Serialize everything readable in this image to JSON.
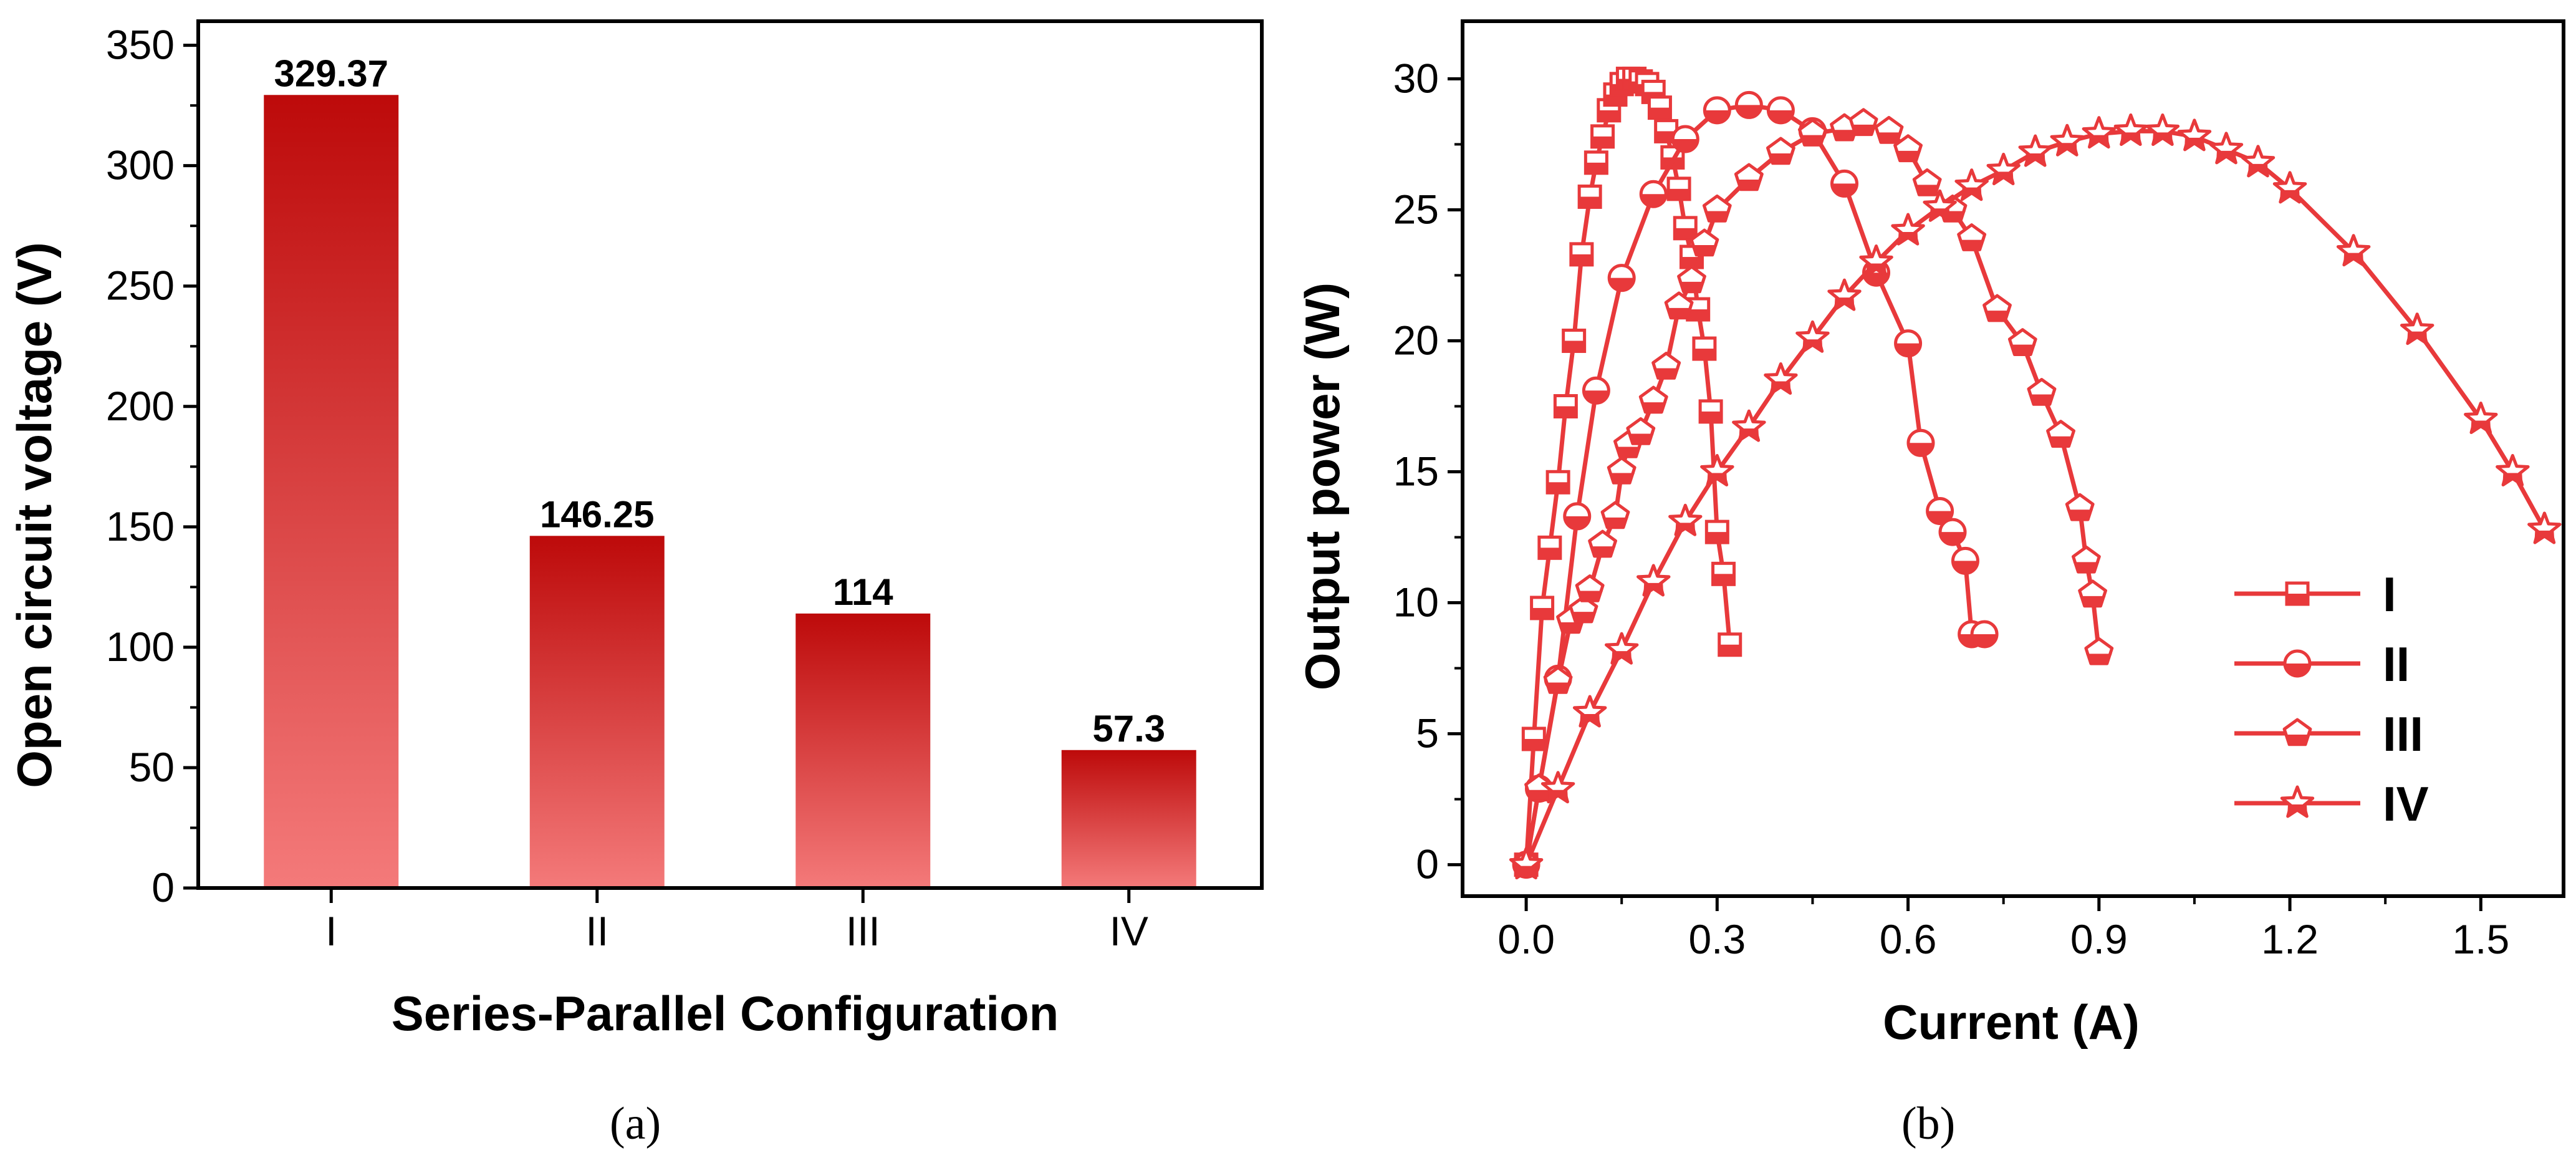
{
  "chart_data": [
    {
      "type": "bar",
      "panel": "(a)",
      "xlabel": "Series-Parallel Configuration",
      "ylabel": "Open circuit voltage (V)",
      "categories": [
        "I",
        "II",
        "III",
        "IV"
      ],
      "values": [
        329.37,
        146.25,
        114,
        57.3
      ],
      "value_labels": [
        "329.37",
        "146.25",
        "114",
        "57.3"
      ],
      "ylim": [
        0,
        360
      ],
      "yticks": [
        0,
        50,
        100,
        150,
        200,
        250,
        300,
        350
      ],
      "grid": false,
      "colors": {
        "bar_top": "#bd0a0a",
        "bar_bottom": "#f47a7a"
      }
    },
    {
      "type": "line",
      "panel": "(b)",
      "xlabel": "Current (A)",
      "ylabel": "Output power (W)",
      "xlim": [
        -0.1,
        1.63
      ],
      "ylim": [
        -1.2,
        32.2
      ],
      "xticks": [
        0.0,
        0.3,
        0.6,
        0.9,
        1.2,
        1.5
      ],
      "xtick_labels": [
        "0.0",
        "0.3",
        "0.6",
        "0.9",
        "1.2",
        "1.5"
      ],
      "yticks": [
        0,
        5,
        10,
        15,
        20,
        25,
        30
      ],
      "legend_position": "lower-right",
      "grid": false,
      "line_color": "#e8393b",
      "series": [
        {
          "name": "I",
          "marker": "square",
          "x": [
            0.0,
            0.012,
            0.025,
            0.037,
            0.05,
            0.062,
            0.075,
            0.087,
            0.1,
            0.11,
            0.12,
            0.13,
            0.14,
            0.15,
            0.16,
            0.17,
            0.18,
            0.19,
            0.2,
            0.21,
            0.22,
            0.23,
            0.24,
            0.25,
            0.26,
            0.27,
            0.28,
            0.29,
            0.3,
            0.31,
            0.32
          ],
          "y": [
            0,
            4.8,
            9.8,
            12.1,
            14.6,
            17.5,
            20.0,
            23.3,
            25.5,
            26.8,
            27.8,
            28.8,
            29.4,
            29.8,
            30.0,
            30.0,
            29.9,
            29.8,
            29.5,
            28.9,
            28.0,
            27.0,
            25.8,
            24.3,
            23.2,
            21.2,
            19.7,
            17.3,
            12.7,
            11.1,
            8.4
          ]
        },
        {
          "name": "II",
          "marker": "circle",
          "x": [
            0.0,
            0.02,
            0.05,
            0.08,
            0.11,
            0.15,
            0.2,
            0.25,
            0.3,
            0.35,
            0.4,
            0.45,
            0.5,
            0.55,
            0.6,
            0.62,
            0.65,
            0.67,
            0.69,
            0.7,
            0.72
          ],
          "y": [
            0,
            2.9,
            7.1,
            13.3,
            18.1,
            22.4,
            25.6,
            27.7,
            28.8,
            29.0,
            28.8,
            28.0,
            26.0,
            22.6,
            19.9,
            16.1,
            13.5,
            12.7,
            11.6,
            8.8,
            8.8
          ]
        },
        {
          "name": "III",
          "marker": "pentagon",
          "x": [
            0.0,
            0.02,
            0.05,
            0.07,
            0.09,
            0.1,
            0.12,
            0.14,
            0.15,
            0.16,
            0.18,
            0.2,
            0.22,
            0.24,
            0.26,
            0.28,
            0.3,
            0.35,
            0.4,
            0.45,
            0.5,
            0.53,
            0.57,
            0.6,
            0.63,
            0.67,
            0.7,
            0.74,
            0.78,
            0.81,
            0.84,
            0.87,
            0.88,
            0.89,
            0.9
          ],
          "y": [
            0,
            2.9,
            7.0,
            9.3,
            9.7,
            10.5,
            12.2,
            13.3,
            15.0,
            16.0,
            16.5,
            17.7,
            19.0,
            21.3,
            22.3,
            23.7,
            25.0,
            26.2,
            27.2,
            27.9,
            28.1,
            28.3,
            28.0,
            27.3,
            26.0,
            25.0,
            23.9,
            21.2,
            19.9,
            18.0,
            16.4,
            13.6,
            11.6,
            10.3,
            8.1
          ]
        },
        {
          "name": "IV",
          "marker": "star",
          "x": [
            0.0,
            0.05,
            0.1,
            0.15,
            0.2,
            0.25,
            0.3,
            0.35,
            0.4,
            0.45,
            0.5,
            0.55,
            0.6,
            0.65,
            0.7,
            0.75,
            0.8,
            0.85,
            0.9,
            0.95,
            1.0,
            1.05,
            1.1,
            1.15,
            1.2,
            1.3,
            1.4,
            1.5,
            1.55,
            1.6
          ],
          "y": [
            0,
            2.9,
            5.8,
            8.2,
            10.8,
            13.1,
            15.0,
            16.7,
            18.5,
            20.1,
            21.7,
            23.0,
            24.2,
            25.1,
            25.9,
            26.5,
            27.2,
            27.6,
            27.9,
            28.0,
            28.0,
            27.8,
            27.3,
            26.8,
            25.8,
            23.4,
            20.4,
            17.0,
            15.0,
            12.8
          ]
        }
      ]
    }
  ],
  "captions": {
    "a": "(a)",
    "b": "(b)"
  }
}
